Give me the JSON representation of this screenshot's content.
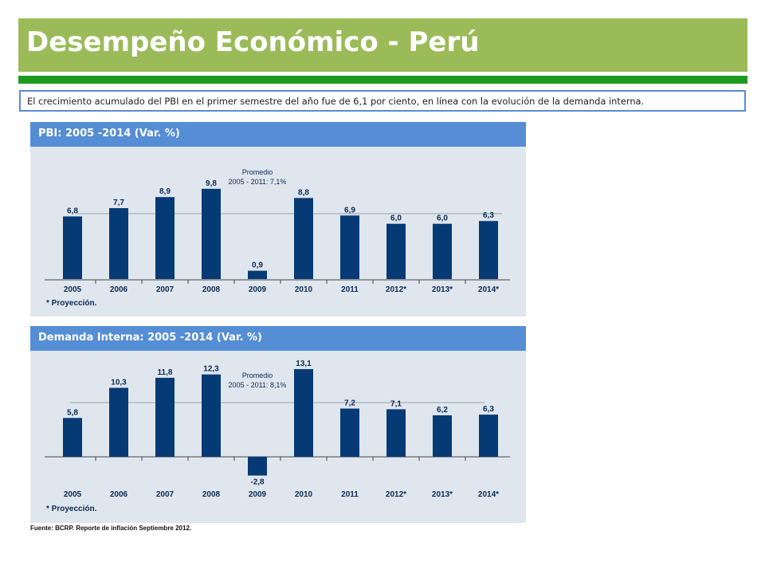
{
  "slide": {
    "title": "Desempeño Económico - Perú",
    "summary": "El crecimiento acumulado del PBI en el primer semestre del año fue de 6,1 por ciento, en línea con la evolución de la demanda interna.",
    "source": "Fuente: BCRP. Reporte de inflación Septiembre 2012."
  },
  "colors": {
    "title_bar": "#9bbb59",
    "green_rule": "#1e9a1e",
    "panel_header": "#558ed5",
    "panel_body": "#dfe6ee",
    "bar": "#063a75"
  },
  "chart_data": [
    {
      "type": "bar",
      "title": "PBI: 2005 -2014 (Var. %)",
      "categories": [
        "2005",
        "2006",
        "2007",
        "2008",
        "2009",
        "2010",
        "2011",
        "2012*",
        "2013*",
        "2014*"
      ],
      "values": [
        6.8,
        7.7,
        8.9,
        9.8,
        0.9,
        8.8,
        6.9,
        6.0,
        6.0,
        6.3
      ],
      "value_labels": [
        "6,8",
        "7,7",
        "8,9",
        "9,8",
        "0,9",
        "8,8",
        "6,9",
        "6,0",
        "6,0",
        "6,3"
      ],
      "reference_line": {
        "value": 7.1,
        "label_lines": [
          "Promedio",
          "2005 - 2011: 7,1%"
        ]
      },
      "footnote": "* Proyección.",
      "ylim": [
        0,
        10.5
      ],
      "grid": false
    },
    {
      "type": "bar",
      "title": "Demanda Interna: 2005 -2014 (Var. %)",
      "categories": [
        "2005",
        "2006",
        "2007",
        "2008",
        "2009",
        "2010",
        "2011",
        "2012*",
        "2013*",
        "2014*"
      ],
      "values": [
        5.8,
        10.3,
        11.8,
        12.3,
        -2.8,
        13.1,
        7.2,
        7.1,
        6.2,
        6.3
      ],
      "value_labels": [
        "5,8",
        "10,3",
        "11,8",
        "12,3",
        "-2,8",
        "13,1",
        "7,2",
        "7,1",
        "6,2",
        "6,3"
      ],
      "reference_line": {
        "value": 8.1,
        "label_lines": [
          "Promedio",
          "2005 - 2011: 8,1%"
        ]
      },
      "footnote": "* Proyección.",
      "ylim": [
        -3,
        14
      ],
      "grid": false
    }
  ]
}
